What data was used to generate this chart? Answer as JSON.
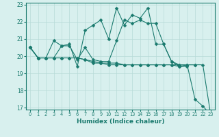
{
  "xlabel": "Humidex (Indice chaleur)",
  "x": [
    0,
    1,
    2,
    3,
    4,
    5,
    6,
    7,
    8,
    9,
    10,
    11,
    12,
    13,
    14,
    15,
    16,
    17,
    18,
    19,
    20,
    21,
    22,
    23
  ],
  "lines": [
    [
      20.5,
      19.9,
      19.9,
      20.9,
      20.6,
      20.7,
      19.4,
      21.5,
      21.8,
      22.1,
      21.0,
      22.8,
      21.8,
      22.4,
      22.2,
      22.8,
      20.7,
      20.7,
      19.7,
      19.4,
      19.5,
      17.5,
      17.1,
      16.6
    ],
    [
      20.5,
      19.9,
      19.9,
      19.9,
      20.6,
      20.6,
      19.8,
      20.5,
      19.8,
      19.7,
      19.7,
      20.9,
      22.1,
      21.9,
      22.1,
      21.9,
      21.9,
      20.7,
      19.7,
      19.5,
      19.5,
      19.5,
      19.5,
      16.6
    ],
    [
      20.5,
      19.9,
      19.9,
      19.9,
      19.9,
      19.9,
      19.9,
      19.8,
      19.7,
      19.6,
      19.5,
      19.5,
      19.5,
      19.5,
      19.5,
      19.5,
      19.5,
      19.5,
      19.5,
      19.5,
      19.5,
      19.5,
      null,
      null
    ],
    [
      20.5,
      19.9,
      19.9,
      19.9,
      19.9,
      19.9,
      19.9,
      19.8,
      19.6,
      19.6,
      19.6,
      19.6,
      19.5,
      19.5,
      19.5,
      19.5,
      19.5,
      19.5,
      19.5,
      19.4,
      19.4,
      null,
      null,
      null
    ]
  ],
  "line_color": "#1a7a6e",
  "bg_color": "#d8f0ee",
  "grid_color": "#b8dbd8",
  "ylim": [
    17,
    23
  ],
  "yticks": [
    17,
    18,
    19,
    20,
    21,
    22,
    23
  ],
  "xlim": [
    -0.5,
    23.5
  ]
}
